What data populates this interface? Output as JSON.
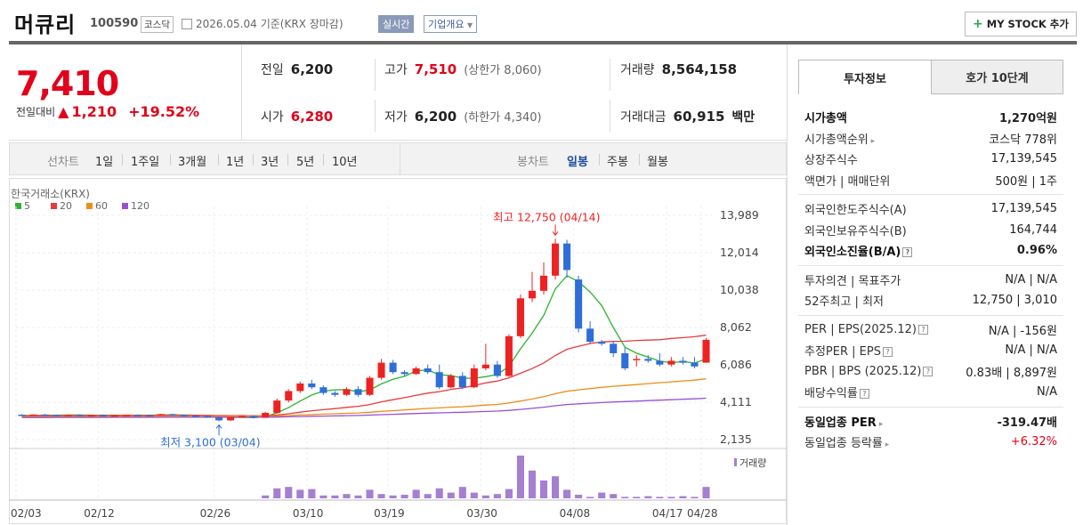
{
  "header": {
    "name": "머큐리",
    "code": "100590",
    "market": "코스닥",
    "date": "2026.05.04",
    "basis": "기준(KRX 장마감)",
    "realtime": "실시간",
    "company": "기업개요",
    "mystock": "MY STOCK 추가"
  },
  "price": {
    "current": "7,410",
    "change_label": "전일대비",
    "change": "1,210",
    "change_pct": "+19.52%",
    "prev_label": "전일",
    "prev": "6,200",
    "high_label": "고가",
    "high": "7,510",
    "high_limit": "(상한가 8,060)",
    "volume_label": "거래량",
    "volume": "8,564,158",
    "open_label": "시가",
    "open": "6,280",
    "low_label": "저가",
    "low": "6,200",
    "low_limit": "(하한가 4,340)",
    "amount_label": "거래대금",
    "amount": "60,915",
    "amount_unit": "백만"
  },
  "toolbar": {
    "line_label": "선차트",
    "periods": [
      "1일",
      "1주일",
      "3개월",
      "1년",
      "3년",
      "5년",
      "10년"
    ],
    "candle_label": "봉차트",
    "candles": [
      "일봉",
      "주봉",
      "월봉"
    ],
    "active_candle": "일봉"
  },
  "chart_data": {
    "type": "candlestick",
    "source": "한국거래소(KRX)",
    "legend": [
      "5",
      "20",
      "60",
      "120"
    ],
    "legend_colors": [
      "#2bb52f",
      "#e83b3b",
      "#f08c1a",
      "#9a4fd3"
    ],
    "y_ticks": [
      "13,989",
      "12,014",
      "10,038",
      "8,062",
      "6,086",
      "4,111",
      "2,135"
    ],
    "ylim": [
      2135,
      13989
    ],
    "x_ticks": [
      "02/03",
      "02/12",
      "02/26",
      "03/10",
      "03/19",
      "03/30",
      "04/08",
      "04/17",
      "04/28"
    ],
    "max_label": "최고 12,750 (04/14)",
    "min_label": "최저 3,100 (03/04)",
    "volume_label": "거래량",
    "candles": [
      [
        3450,
        3480,
        3400,
        3420
      ],
      [
        3430,
        3470,
        3400,
        3460
      ],
      [
        3460,
        3490,
        3420,
        3440
      ],
      [
        3440,
        3460,
        3380,
        3400
      ],
      [
        3400,
        3450,
        3380,
        3440
      ],
      [
        3440,
        3470,
        3400,
        3420
      ],
      [
        3420,
        3450,
        3390,
        3430
      ],
      [
        3430,
        3460,
        3400,
        3410
      ],
      [
        3410,
        3440,
        3380,
        3420
      ],
      [
        3420,
        3450,
        3400,
        3440
      ],
      [
        3440,
        3470,
        3410,
        3430
      ],
      [
        3430,
        3450,
        3400,
        3410
      ],
      [
        3410,
        3500,
        3400,
        3480
      ],
      [
        3480,
        3500,
        3420,
        3440
      ],
      [
        3440,
        3460,
        3380,
        3400
      ],
      [
        3400,
        3430,
        3370,
        3380
      ],
      [
        3380,
        3400,
        3280,
        3300
      ],
      [
        3300,
        3360,
        3100,
        3150
      ],
      [
        3150,
        3350,
        3120,
        3320
      ],
      [
        3320,
        3420,
        3280,
        3380
      ],
      [
        3380,
        3420,
        3250,
        3300
      ],
      [
        3300,
        3600,
        3280,
        3550
      ],
      [
        3550,
        4300,
        3500,
        4200
      ],
      [
        4200,
        4800,
        4100,
        4700
      ],
      [
        4700,
        5200,
        4600,
        5100
      ],
      [
        5100,
        5300,
        4800,
        4900
      ],
      [
        4900,
        5000,
        4500,
        4600
      ],
      [
        4600,
        4700,
        4400,
        4500
      ],
      [
        4500,
        4900,
        4450,
        4800
      ],
      [
        4800,
        4950,
        4400,
        4500
      ],
      [
        4500,
        5500,
        4450,
        5400
      ],
      [
        5400,
        6400,
        5300,
        6200
      ],
      [
        6200,
        6350,
        5600,
        5700
      ],
      [
        5700,
        5800,
        5500,
        5600
      ],
      [
        5600,
        6000,
        5550,
        5900
      ],
      [
        5900,
        6100,
        5600,
        5700
      ],
      [
        5700,
        6100,
        4800,
        4900
      ],
      [
        4900,
        5600,
        4850,
        5500
      ],
      [
        5500,
        5700,
        4800,
        4900
      ],
      [
        4900,
        6100,
        4850,
        5900
      ],
      [
        5900,
        7200,
        5800,
        6100
      ],
      [
        6100,
        6300,
        5400,
        5500
      ],
      [
        5500,
        7700,
        5450,
        7600
      ],
      [
        7600,
        9800,
        7500,
        9600
      ],
      [
        9600,
        11000,
        9400,
        10000
      ],
      [
        10000,
        11500,
        9800,
        10800
      ],
      [
        10800,
        12750,
        10600,
        12500
      ],
      [
        12500,
        12700,
        10700,
        11100
      ],
      [
        10600,
        10800,
        7800,
        8000
      ],
      [
        8000,
        8400,
        7200,
        7300
      ],
      [
        7300,
        7400,
        7100,
        7200
      ],
      [
        7200,
        7300,
        6500,
        6700
      ],
      [
        6700,
        7000,
        5800,
        5900
      ],
      [
        6400,
        6600,
        6000,
        6400
      ],
      [
        6400,
        6600,
        6200,
        6300
      ],
      [
        6300,
        6700,
        6000,
        6100
      ],
      [
        6100,
        6500,
        6000,
        6300
      ],
      [
        6300,
        6500,
        6100,
        6200
      ],
      [
        6200,
        6500,
        5900,
        6000
      ],
      [
        6200,
        7510,
        6200,
        7410
      ]
    ],
    "volumes": [
      0,
      0,
      0,
      0,
      0,
      0,
      0,
      0,
      0,
      0,
      0,
      0,
      0,
      0,
      0,
      0,
      0,
      0,
      0,
      0,
      0,
      4,
      14,
      16,
      12,
      13,
      4,
      4,
      6,
      4,
      12,
      6,
      4,
      5,
      12,
      6,
      14,
      8,
      16,
      8,
      4,
      6,
      13,
      60,
      39,
      25,
      31,
      12,
      5,
      2,
      8,
      6,
      2,
      2,
      3,
      2,
      2,
      3,
      2,
      16
    ]
  },
  "tabs": {
    "active": "투자정보",
    "other": "호가 10단계"
  },
  "info": {
    "g1": [
      {
        "k": "시가총액",
        "v": "1,270억원",
        "b": true
      },
      {
        "k": "시가총액순위",
        "v": "코스닥 778위"
      },
      {
        "k": "상장주식수",
        "v": "17,139,545"
      },
      {
        "k": "액면가 | 매매단위",
        "v": "500원 | 1주"
      }
    ],
    "g2": [
      {
        "k": "외국인한도주식수(A)",
        "v": "17,139,545"
      },
      {
        "k": "외국인보유주식수(B)",
        "v": "164,744"
      },
      {
        "k": "외국인소진율(B/A)",
        "v": "0.96%",
        "b": true
      }
    ],
    "g3": [
      {
        "k": "투자의견 | 목표주가",
        "v": "N/A | N/A"
      },
      {
        "k": "52주최고 | 최저",
        "v": "12,750 | 3,010"
      }
    ],
    "g4": [
      {
        "k": "PER | EPS(2025.12)",
        "v": "N/A | -156원"
      },
      {
        "k": "추정PER | EPS",
        "v": "N/A | N/A"
      },
      {
        "k": "PBR | BPS (2025.12)",
        "v": "0.83배 | 8,897원"
      },
      {
        "k": "배당수익률",
        "v": "N/A"
      }
    ],
    "g5": [
      {
        "k": "동일업종 PER",
        "v": "-319.47배",
        "b": true
      },
      {
        "k": "동일업종 등락률",
        "v": "+6.32%",
        "red": true
      }
    ]
  }
}
